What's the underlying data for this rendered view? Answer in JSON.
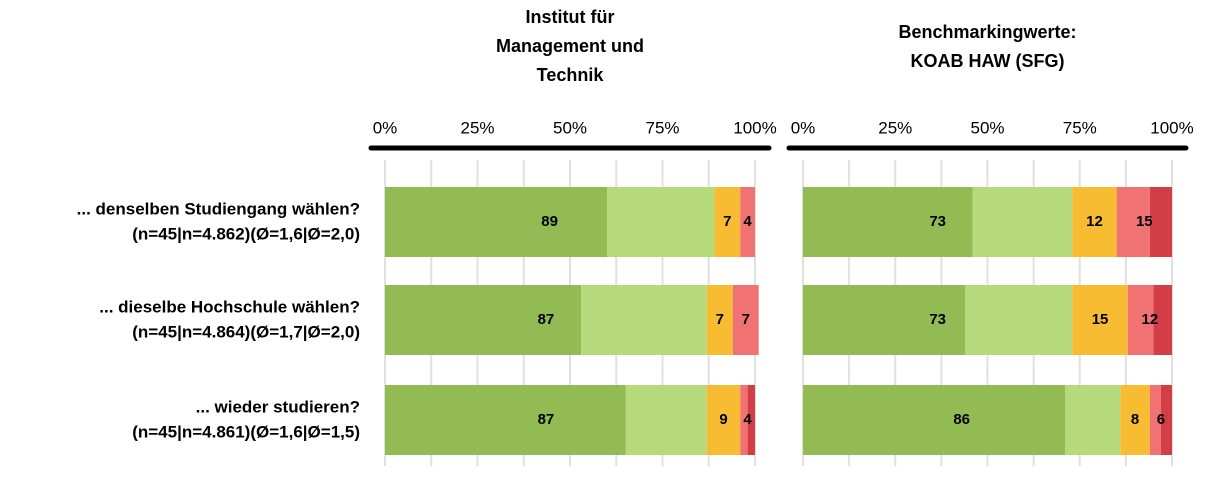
{
  "chart_data": [
    {
      "type": "stacked-bar",
      "title": "Institut für\nManagement und\nTechnik",
      "categories": [
        [
          "... denselben Studiengang wählen?",
          "(n=45|n=4.862)(Ø=1,6|Ø=2,0)"
        ],
        [
          "... dieselbe Hochschule wählen?",
          "(n=45|n=4.864)(Ø=1,7|Ø=2,0)"
        ],
        [
          "... wieder studieren?",
          "(n=45|n=4.861)(Ø=1,6|Ø=1,5)"
        ]
      ],
      "series": [
        {
          "color": "#92bb53",
          "values": [
            60,
            53,
            65
          ]
        },
        {
          "color": "#b6d97b",
          "values": [
            29,
            34,
            22
          ]
        },
        {
          "color": "#f8bc32",
          "values": [
            7,
            7,
            9
          ]
        },
        {
          "color": "#f07273",
          "values": [
            4,
            7,
            2
          ]
        },
        {
          "color": "#d23d46",
          "values": [
            0,
            0,
            2
          ]
        }
      ],
      "positive_labels": [
        89,
        87,
        87
      ],
      "neutral_labels": [
        7,
        7,
        9
      ],
      "negative_labels": [
        4,
        7,
        4
      ],
      "xlim": [
        0,
        100
      ],
      "xticks": [
        {
          "value": 0,
          "label": "0%"
        },
        {
          "value": 25,
          "label": "25%"
        },
        {
          "value": 50,
          "label": "50%"
        },
        {
          "value": 75,
          "label": "75%"
        },
        {
          "value": 100,
          "label": "100%"
        }
      ],
      "minor_xticks": [
        12.5,
        37.5,
        62.5,
        87.5
      ],
      "grid": true
    },
    {
      "type": "stacked-bar",
      "title": "Benchmarkingwerte:\nKOAB HAW (SFG)",
      "series": [
        {
          "color": "#92bb53",
          "values": [
            46,
            44,
            71
          ]
        },
        {
          "color": "#b6d97b",
          "values": [
            27,
            29,
            15
          ]
        },
        {
          "color": "#f8bc32",
          "values": [
            12,
            15,
            8
          ]
        },
        {
          "color": "#f07273",
          "values": [
            9,
            7,
            3
          ]
        },
        {
          "color": "#d23d46",
          "values": [
            6,
            5,
            3
          ]
        }
      ],
      "positive_labels": [
        73,
        73,
        86
      ],
      "neutral_labels": [
        12,
        15,
        8
      ],
      "negative_labels": [
        15,
        12,
        6
      ],
      "xlim": [
        0,
        100
      ],
      "xticks": [
        {
          "value": 0,
          "label": "0%"
        },
        {
          "value": 25,
          "label": "25%"
        },
        {
          "value": 50,
          "label": "50%"
        },
        {
          "value": 75,
          "label": "75%"
        },
        {
          "value": 100,
          "label": "100%"
        }
      ],
      "minor_xticks": [
        12.5,
        37.5,
        62.5,
        87.5
      ],
      "grid": true
    }
  ]
}
